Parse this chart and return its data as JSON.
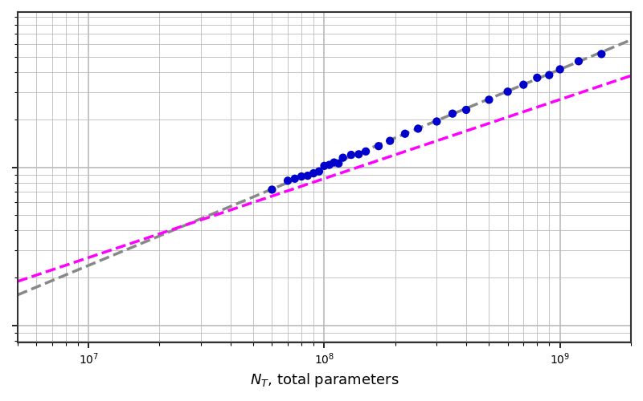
{
  "xlabel": "$N_T$, total parameters",
  "xlim": [
    5000000.0,
    2000000000.0
  ],
  "gray_line_color": "#888888",
  "magenta_line_color": "#ff00ff",
  "dot_color": "#0000cc",
  "dot_size": 55,
  "line_width": 2.5,
  "background_color": "#ffffff",
  "grid_color": "#bbbbbb",
  "alpha_gray": 0.62,
  "alpha_magenta": 0.5,
  "magenta_scale": 0.85,
  "scatter_x": [
    60000000.0,
    70000000.0,
    75000000.0,
    80000000.0,
    85000000.0,
    90000000.0,
    95000000.0,
    100000000.0,
    105000000.0,
    110000000.0,
    115000000.0,
    120000000.0,
    130000000.0,
    140000000.0,
    150000000.0,
    170000000.0,
    190000000.0,
    220000000.0,
    250000000.0,
    300000000.0,
    350000000.0,
    400000000.0,
    500000000.0,
    600000000.0,
    700000000.0,
    800000000.0,
    900000000.0,
    1000000000.0,
    1200000000.0,
    1500000000.0
  ],
  "figsize": [
    8.0,
    5.0
  ],
  "dpi": 100
}
